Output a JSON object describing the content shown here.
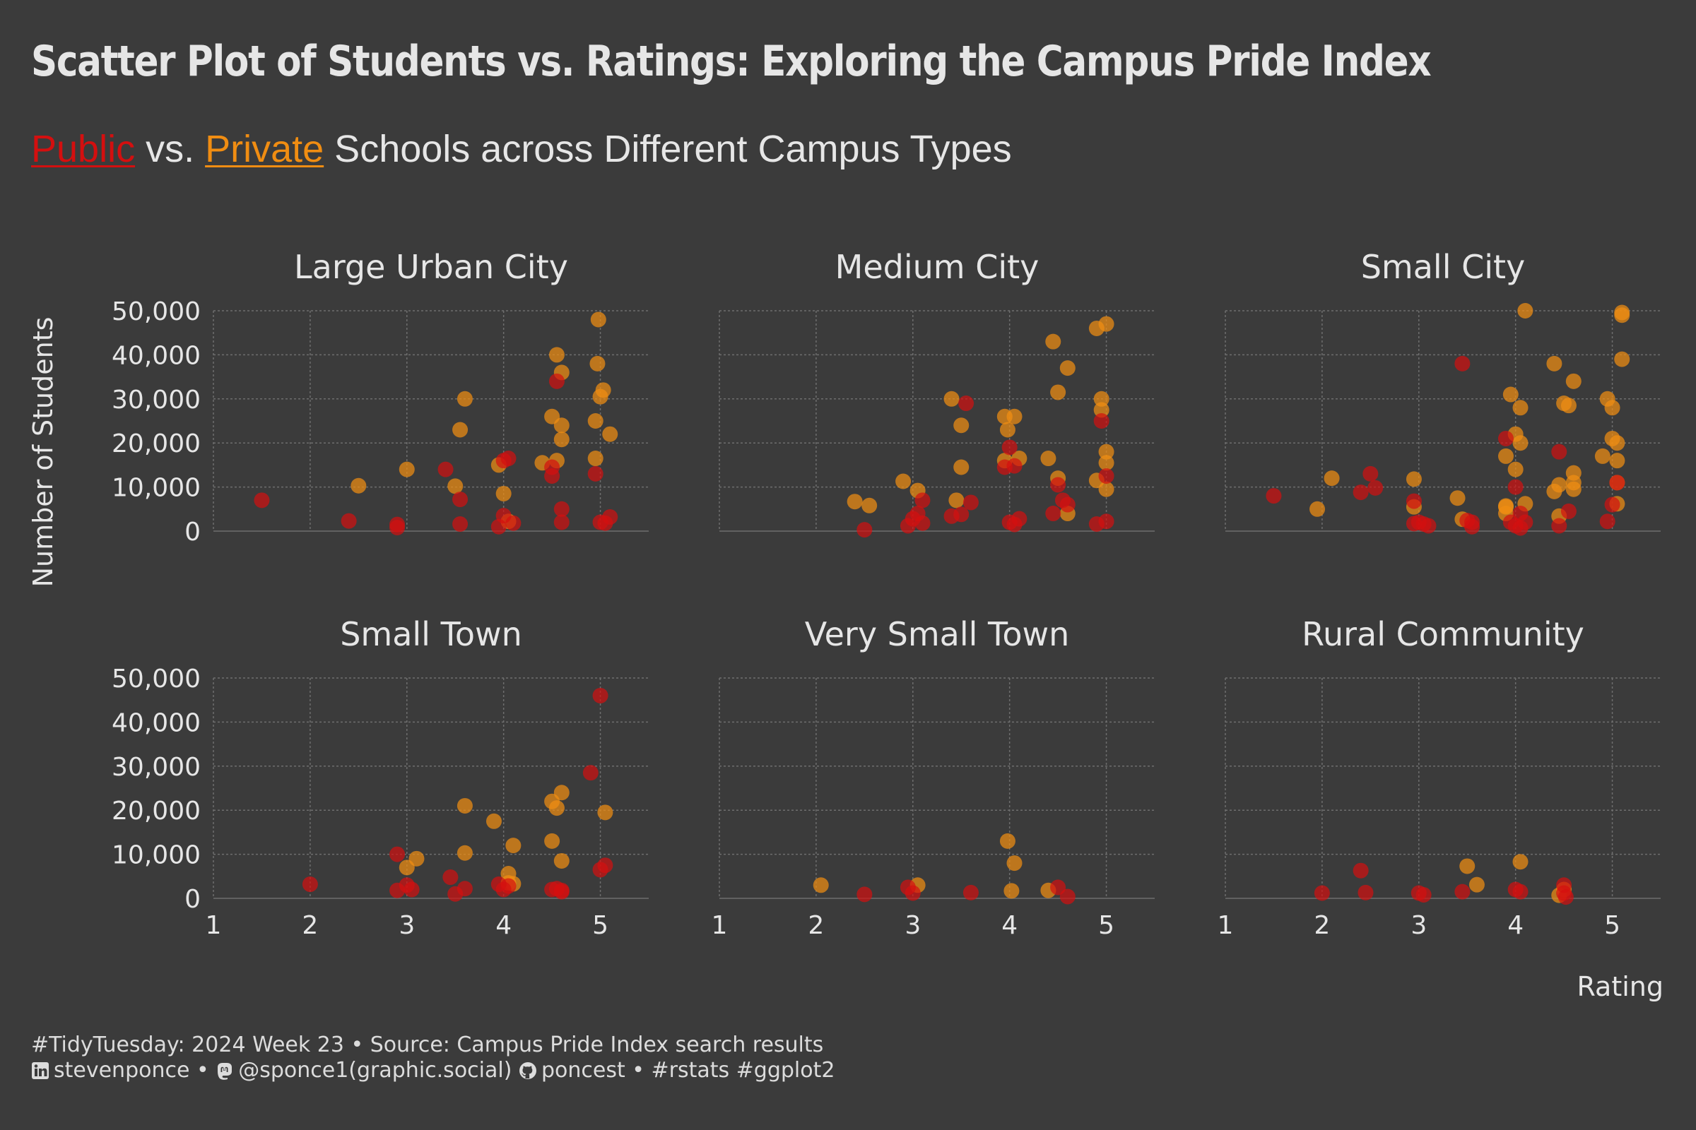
{
  "title": "Scatter Plot of Students vs. Ratings: Exploring the Campus Pride Index",
  "subtitle": {
    "public_word": "Public",
    "vs_text": " vs. ",
    "private_word": "Private",
    "rest_text": " Schools across Different Campus Types"
  },
  "colors": {
    "background": "#3b3b3b",
    "public": "#d40f0f",
    "private": "#f08d12",
    "text": "#e6e6e6",
    "grid": "#6e6e6e"
  },
  "caption": {
    "line1": "#TidyTuesday: 2024 Week 23 • Source: Campus Pride Index search results",
    "linkedin": "stevenponce • ",
    "mastodon": "@sponce1(graphic.social) ",
    "github": "poncest • #rstats #ggplot2",
    "icons": [
      "linkedin-icon",
      "mastodon-icon",
      "github-icon"
    ]
  },
  "chart_data": {
    "type": "scatter",
    "xlabel": "Rating",
    "ylabel": "Number of Students",
    "xlim": [
      1,
      5.5
    ],
    "ylim": [
      0,
      50000
    ],
    "x_ticks": [
      "1",
      "2",
      "3",
      "4",
      "5"
    ],
    "y_ticks": [
      "0",
      "10,000",
      "20,000",
      "30,000",
      "40,000",
      "50,000"
    ],
    "grid": true,
    "series_names": [
      "Public",
      "Private"
    ],
    "facets": [
      {
        "name": "Large Urban City",
        "public": [
          [
            1.5,
            7000
          ],
          [
            2.4,
            2300
          ],
          [
            2.9,
            1500
          ],
          [
            2.9,
            800
          ],
          [
            3.4,
            14000
          ],
          [
            3.55,
            7200
          ],
          [
            3.55,
            1600
          ],
          [
            3.95,
            1000
          ],
          [
            4.0,
            3500
          ],
          [
            4.0,
            16000
          ],
          [
            4.05,
            16500
          ],
          [
            4.1,
            1800
          ],
          [
            4.5,
            14500
          ],
          [
            4.55,
            34000
          ],
          [
            4.6,
            2000
          ],
          [
            4.6,
            5000
          ],
          [
            4.95,
            13000
          ],
          [
            5.0,
            2000
          ],
          [
            5.05,
            1800
          ],
          [
            5.1,
            3200
          ],
          [
            4.5,
            12500
          ]
        ],
        "private": [
          [
            2.5,
            10300
          ],
          [
            3.0,
            14000
          ],
          [
            3.5,
            10200
          ],
          [
            3.55,
            23000
          ],
          [
            3.6,
            30000
          ],
          [
            3.95,
            15000
          ],
          [
            4.0,
            8500
          ],
          [
            4.05,
            2200
          ],
          [
            4.4,
            15500
          ],
          [
            4.5,
            26000
          ],
          [
            4.55,
            40000
          ],
          [
            4.6,
            36000
          ],
          [
            4.6,
            24000
          ],
          [
            4.6,
            20800
          ],
          [
            4.55,
            16000
          ],
          [
            4.95,
            25000
          ],
          [
            4.97,
            38000
          ],
          [
            5.0,
            30500
          ],
          [
            5.03,
            32000
          ],
          [
            5.1,
            22000
          ],
          [
            4.98,
            48000
          ],
          [
            4.95,
            16500
          ]
        ]
      },
      {
        "name": "Medium City",
        "public": [
          [
            2.5,
            300
          ],
          [
            2.95,
            1200
          ],
          [
            3.0,
            2800
          ],
          [
            3.05,
            4000
          ],
          [
            3.1,
            1800
          ],
          [
            3.1,
            7000
          ],
          [
            3.4,
            3400
          ],
          [
            3.5,
            3800
          ],
          [
            3.55,
            29000
          ],
          [
            3.6,
            6500
          ],
          [
            3.95,
            14500
          ],
          [
            4.0,
            2000
          ],
          [
            4.0,
            19000
          ],
          [
            4.05,
            1500
          ],
          [
            4.05,
            14800
          ],
          [
            4.1,
            2800
          ],
          [
            4.45,
            4000
          ],
          [
            4.5,
            10500
          ],
          [
            4.55,
            7000
          ],
          [
            4.6,
            6000
          ],
          [
            4.9,
            1600
          ],
          [
            4.95,
            25000
          ],
          [
            5.0,
            2200
          ],
          [
            5.0,
            12500
          ]
        ],
        "private": [
          [
            2.4,
            6700
          ],
          [
            2.55,
            5800
          ],
          [
            2.9,
            11300
          ],
          [
            3.05,
            9200
          ],
          [
            3.4,
            30000
          ],
          [
            3.45,
            7000
          ],
          [
            3.5,
            24000
          ],
          [
            3.5,
            14500
          ],
          [
            3.95,
            26000
          ],
          [
            3.95,
            16000
          ],
          [
            3.98,
            23000
          ],
          [
            4.05,
            26000
          ],
          [
            4.1,
            16500
          ],
          [
            4.4,
            16500
          ],
          [
            4.45,
            43000
          ],
          [
            4.5,
            12000
          ],
          [
            4.5,
            31500
          ],
          [
            4.6,
            37000
          ],
          [
            4.6,
            4000
          ],
          [
            4.9,
            46000
          ],
          [
            4.95,
            30000
          ],
          [
            4.95,
            27500
          ],
          [
            5.0,
            47000
          ],
          [
            5.0,
            18000
          ],
          [
            5.0,
            15500
          ],
          [
            5.0,
            9500
          ],
          [
            4.9,
            11500
          ]
        ]
      },
      {
        "name": "Small City",
        "public": [
          [
            1.5,
            8000
          ],
          [
            2.4,
            8800
          ],
          [
            2.5,
            13000
          ],
          [
            2.55,
            9800
          ],
          [
            2.95,
            6800
          ],
          [
            2.95,
            1700
          ],
          [
            3.05,
            1600
          ],
          [
            3.1,
            1200
          ],
          [
            3.0,
            2000
          ],
          [
            3.45,
            38000
          ],
          [
            3.5,
            2400
          ],
          [
            3.55,
            2000
          ],
          [
            3.55,
            1000
          ],
          [
            3.9,
            21000
          ],
          [
            3.95,
            2000
          ],
          [
            4.0,
            1200
          ],
          [
            4.0,
            10000
          ],
          [
            4.05,
            4000
          ],
          [
            4.1,
            2000
          ],
          [
            4.45,
            1200
          ],
          [
            4.45,
            18000
          ],
          [
            4.55,
            4500
          ],
          [
            4.95,
            2200
          ],
          [
            5.0,
            6000
          ],
          [
            5.05,
            11000
          ],
          [
            4.05,
            700
          ]
        ],
        "private": [
          [
            1.95,
            5000
          ],
          [
            2.1,
            12000
          ],
          [
            2.95,
            11800
          ],
          [
            2.95,
            5500
          ],
          [
            3.4,
            7500
          ],
          [
            3.45,
            2700
          ],
          [
            3.9,
            17000
          ],
          [
            3.9,
            4000
          ],
          [
            3.9,
            5500
          ],
          [
            3.95,
            31000
          ],
          [
            4.0,
            14000
          ],
          [
            4.0,
            22000
          ],
          [
            4.05,
            20000
          ],
          [
            4.05,
            28000
          ],
          [
            4.1,
            6200
          ],
          [
            4.1,
            50000
          ],
          [
            4.4,
            38000
          ],
          [
            4.4,
            9000
          ],
          [
            4.45,
            10500
          ],
          [
            4.5,
            29000
          ],
          [
            4.55,
            28500
          ],
          [
            4.6,
            34000
          ],
          [
            4.6,
            13200
          ],
          [
            4.6,
            9500
          ],
          [
            4.9,
            17000
          ],
          [
            4.95,
            30000
          ],
          [
            5.0,
            21000
          ],
          [
            5.0,
            28000
          ],
          [
            5.05,
            20000
          ],
          [
            5.05,
            16000
          ],
          [
            5.05,
            11000
          ],
          [
            5.05,
            6200
          ],
          [
            5.1,
            49000
          ],
          [
            5.1,
            49600
          ],
          [
            5.1,
            39000
          ],
          [
            4.45,
            3400
          ],
          [
            3.9,
            5700
          ],
          [
            4.6,
            11000
          ]
        ]
      },
      {
        "name": "Small Town",
        "public": [
          [
            2.0,
            3200
          ],
          [
            2.9,
            10000
          ],
          [
            2.9,
            1800
          ],
          [
            3.0,
            3000
          ],
          [
            3.05,
            2000
          ],
          [
            3.45,
            4800
          ],
          [
            3.5,
            1000
          ],
          [
            3.6,
            2200
          ],
          [
            3.95,
            3200
          ],
          [
            4.0,
            2000
          ],
          [
            4.05,
            2800
          ],
          [
            4.5,
            2000
          ],
          [
            4.55,
            2200
          ],
          [
            4.6,
            1800
          ],
          [
            4.9,
            28500
          ],
          [
            5.0,
            46000
          ],
          [
            5.0,
            6500
          ],
          [
            5.05,
            7500
          ],
          [
            4.6,
            1500
          ]
        ],
        "private": [
          [
            3.0,
            7000
          ],
          [
            3.1,
            9000
          ],
          [
            3.6,
            10300
          ],
          [
            3.6,
            21000
          ],
          [
            3.9,
            17500
          ],
          [
            4.05,
            5600
          ],
          [
            4.05,
            3500
          ],
          [
            4.1,
            12000
          ],
          [
            4.1,
            3300
          ],
          [
            4.5,
            22000
          ],
          [
            4.5,
            13000
          ],
          [
            4.55,
            20500
          ],
          [
            4.6,
            24000
          ],
          [
            4.6,
            8500
          ],
          [
            5.05,
            19500
          ]
        ]
      },
      {
        "name": "Very Small Town",
        "public": [
          [
            2.5,
            900
          ],
          [
            2.95,
            2500
          ],
          [
            3.0,
            1200
          ],
          [
            3.6,
            1300
          ],
          [
            4.5,
            2500
          ],
          [
            4.6,
            400
          ]
        ],
        "private": [
          [
            2.05,
            3000
          ],
          [
            3.05,
            3000
          ],
          [
            3.98,
            13000
          ],
          [
            4.02,
            1700
          ],
          [
            4.05,
            8000
          ],
          [
            4.4,
            1800
          ]
        ]
      },
      {
        "name": "Rural Community",
        "public": [
          [
            2.0,
            1200
          ],
          [
            2.4,
            6300
          ],
          [
            2.45,
            1300
          ],
          [
            3.0,
            1200
          ],
          [
            3.05,
            800
          ],
          [
            3.45,
            1500
          ],
          [
            4.0,
            2000
          ],
          [
            4.05,
            1500
          ],
          [
            4.5,
            3000
          ],
          [
            4.5,
            1200
          ],
          [
            4.52,
            300
          ]
        ],
        "private": [
          [
            3.5,
            7300
          ],
          [
            3.6,
            3100
          ],
          [
            4.05,
            8300
          ],
          [
            4.45,
            700
          ],
          [
            4.5,
            2000
          ]
        ]
      }
    ]
  }
}
